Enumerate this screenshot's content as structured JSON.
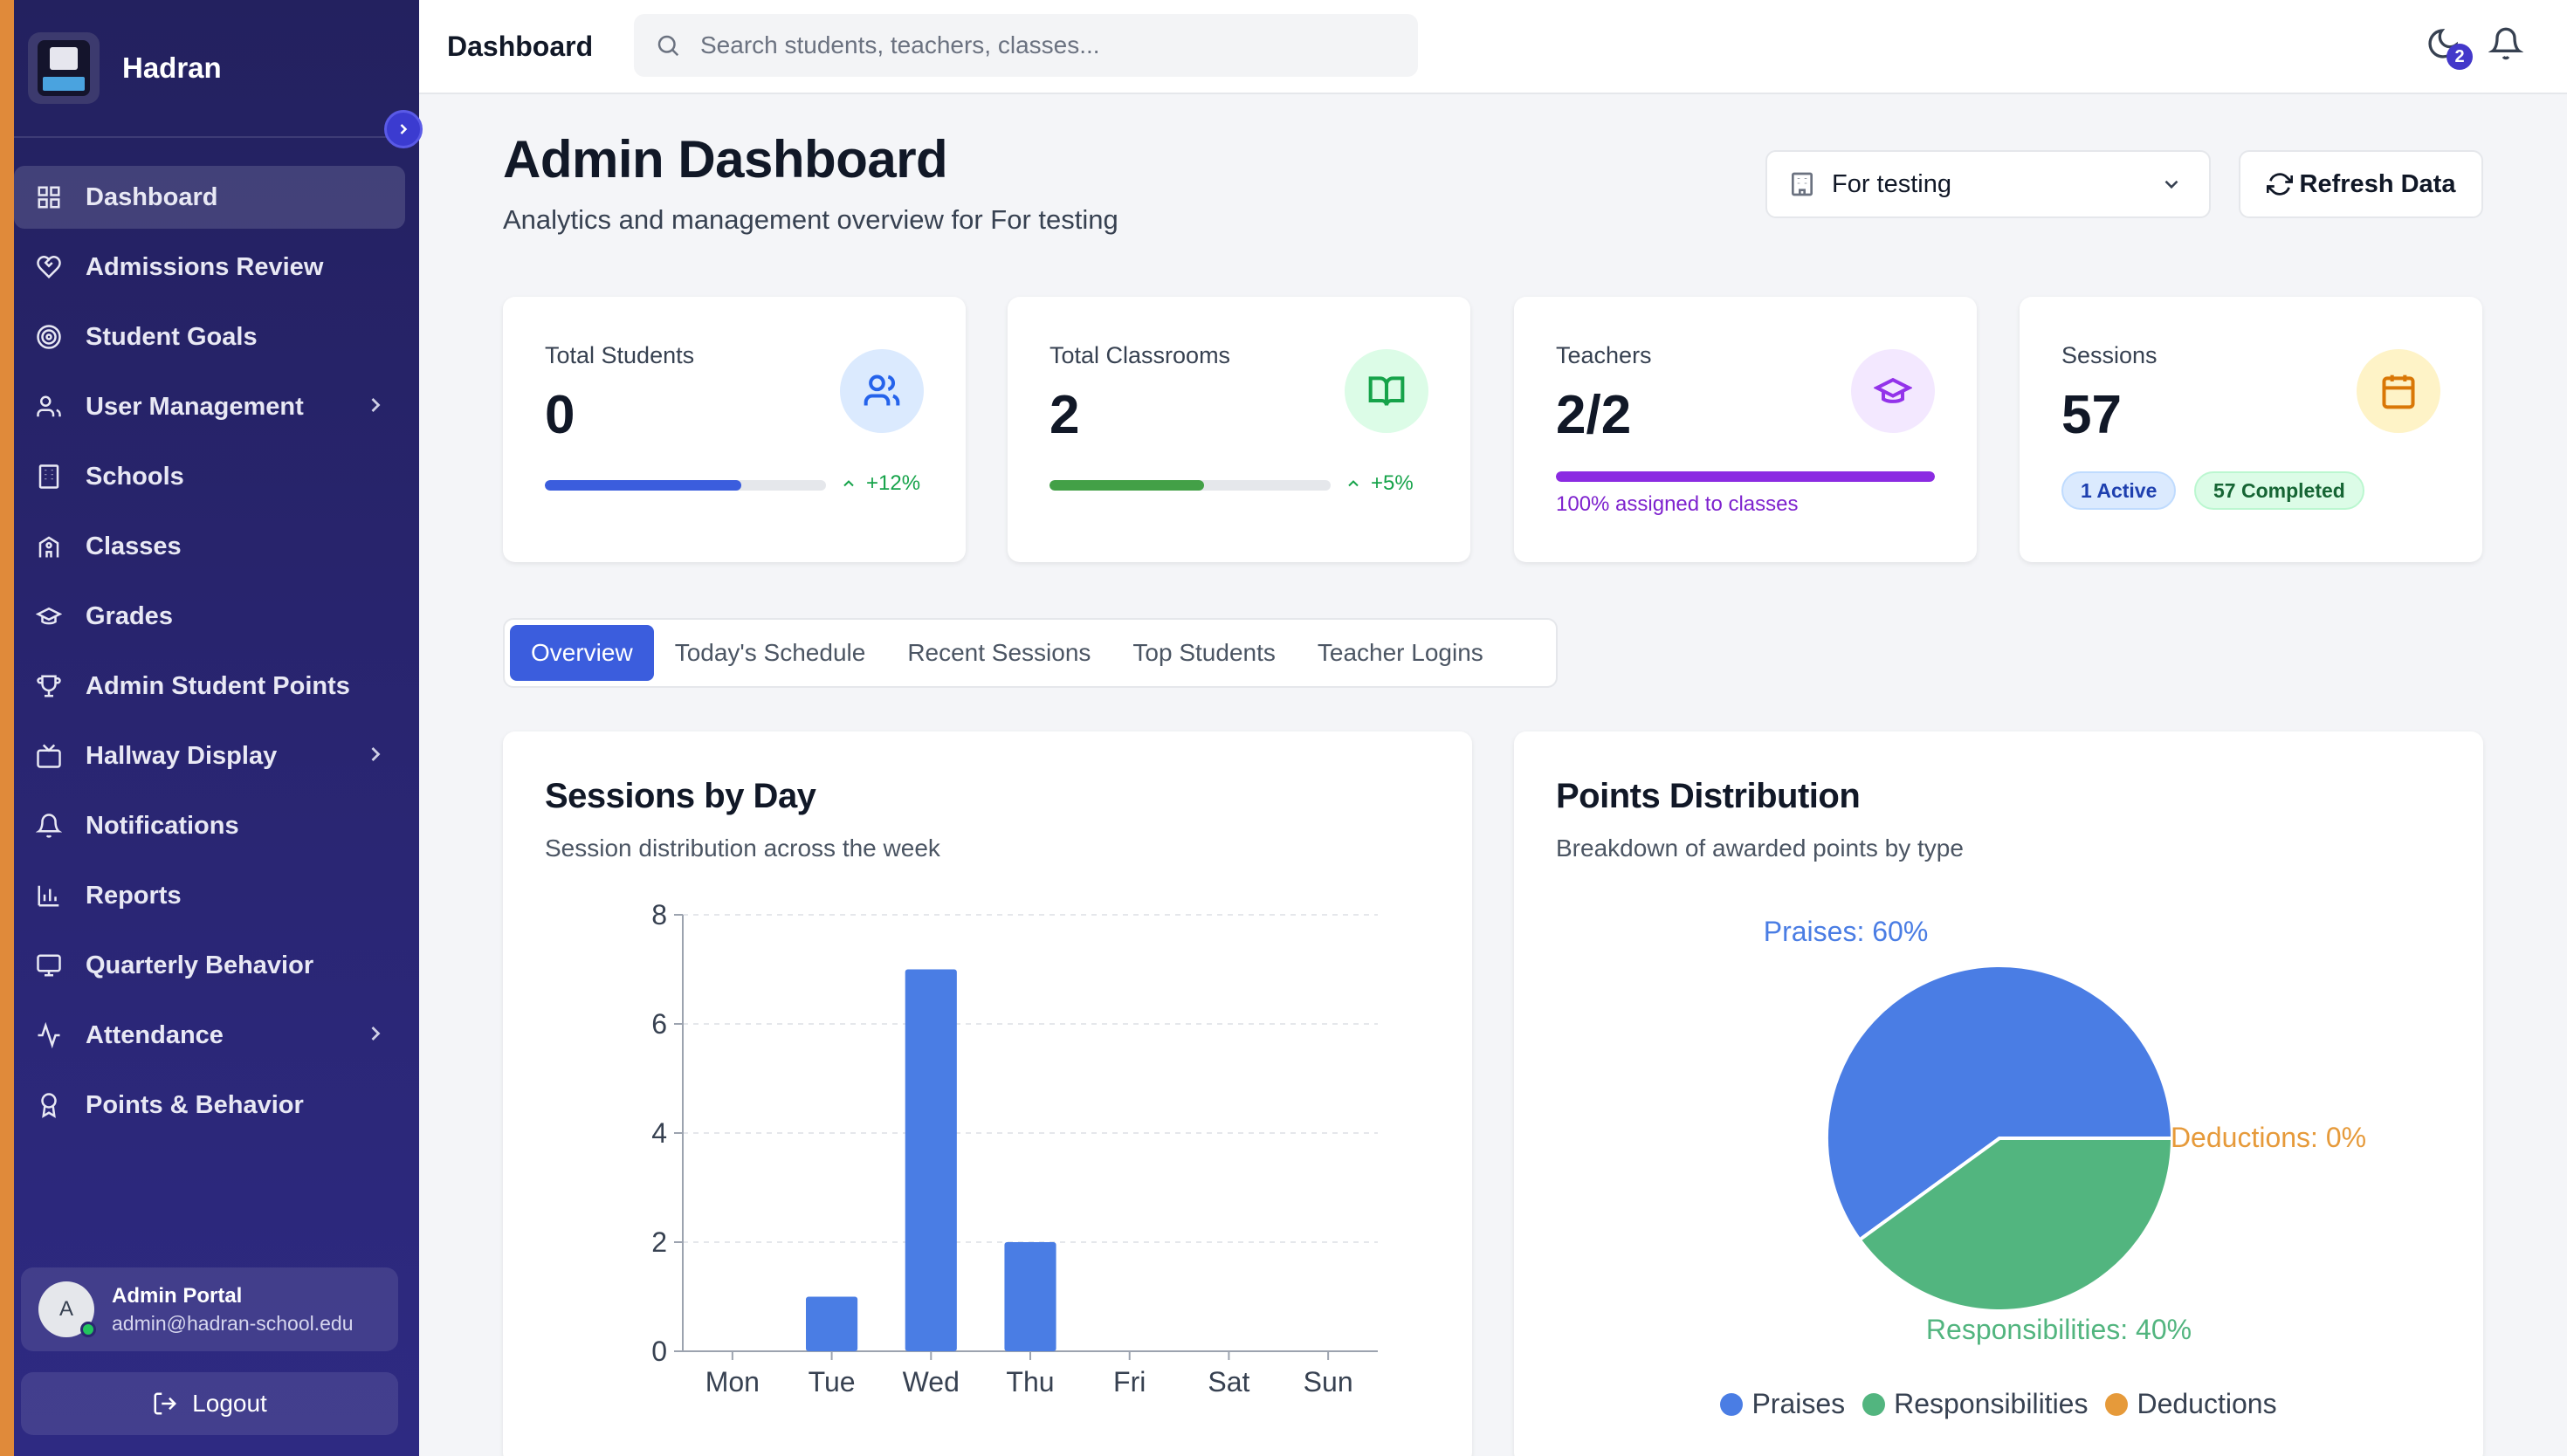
{
  "sidebar": {
    "brand": "Hadran",
    "items": [
      {
        "label": "Dashboard",
        "icon": "dashboard-grid-icon",
        "active": true
      },
      {
        "label": "Admissions Review",
        "icon": "heart-handshake-icon"
      },
      {
        "label": "Student Goals",
        "icon": "target-icon"
      },
      {
        "label": "User Management",
        "icon": "users-icon",
        "expandable": true
      },
      {
        "label": "Schools",
        "icon": "building-icon"
      },
      {
        "label": "Classes",
        "icon": "school-icon"
      },
      {
        "label": "Grades",
        "icon": "graduation-cap-icon"
      },
      {
        "label": "Admin Student Points",
        "icon": "trophy-icon"
      },
      {
        "label": "Hallway Display",
        "icon": "tv-icon",
        "expandable": true
      },
      {
        "label": "Notifications",
        "icon": "bell-icon"
      },
      {
        "label": "Reports",
        "icon": "bar-chart-icon"
      },
      {
        "label": "Quarterly Behavior",
        "icon": "monitor-icon"
      },
      {
        "label": "Attendance",
        "icon": "activity-icon",
        "expandable": true
      },
      {
        "label": "Points & Behavior",
        "icon": "award-icon"
      }
    ],
    "profile": {
      "initial": "A",
      "name": "Admin Portal",
      "email": "admin@hadran-school.edu"
    },
    "logout": "Logout"
  },
  "topbar": {
    "title": "Dashboard",
    "search_placeholder": "Search students, teachers, classes...",
    "moon_badge": "2"
  },
  "header": {
    "title": "Admin Dashboard",
    "subtitle": "Analytics and management overview for For testing",
    "school_select": "For testing",
    "refresh": "Refresh Data"
  },
  "cards": {
    "students": {
      "label": "Total Students",
      "value": "0",
      "trend": "+12%",
      "progress": 0.7
    },
    "classrooms": {
      "label": "Total Classrooms",
      "value": "2",
      "trend": "+5%",
      "progress": 0.55
    },
    "teachers": {
      "label": "Teachers",
      "value": "2/2",
      "note": "100% assigned to classes",
      "progress": 1.0
    },
    "sessions": {
      "label": "Sessions",
      "value": "57",
      "active": "1 Active",
      "completed": "57 Completed"
    }
  },
  "tabs": [
    "Overview",
    "Today's Schedule",
    "Recent Sessions",
    "Top Students",
    "Teacher Logins"
  ],
  "colors": {
    "blue": "#4a7de4",
    "green": "#52b57f",
    "orange": "#e69a3a",
    "purple": "#8b2be2"
  },
  "panels": {
    "sessions": {
      "title": "Sessions by Day",
      "subtitle": "Session distribution across the week"
    },
    "points": {
      "title": "Points Distribution",
      "subtitle": "Breakdown of awarded points by type"
    }
  },
  "chart_data": [
    {
      "type": "bar",
      "title": "Sessions by Day",
      "categories": [
        "Mon",
        "Tue",
        "Wed",
        "Thu",
        "Fri",
        "Sat",
        "Sun"
      ],
      "values": [
        0,
        1,
        7,
        2,
        0,
        0,
        0
      ],
      "ylim": [
        0,
        8
      ],
      "yticks": [
        "0",
        "2",
        "4",
        "6",
        "8"
      ],
      "grid": true
    },
    {
      "type": "pie",
      "title": "Points Distribution",
      "labels": [
        "Praises",
        "Responsibilities",
        "Deductions"
      ],
      "values": [
        60,
        40,
        0
      ],
      "slice_labels": [
        "Praises: 60%",
        "Responsibilities: 40%",
        "Deductions: 0%"
      ],
      "legend": "bottom"
    }
  ]
}
